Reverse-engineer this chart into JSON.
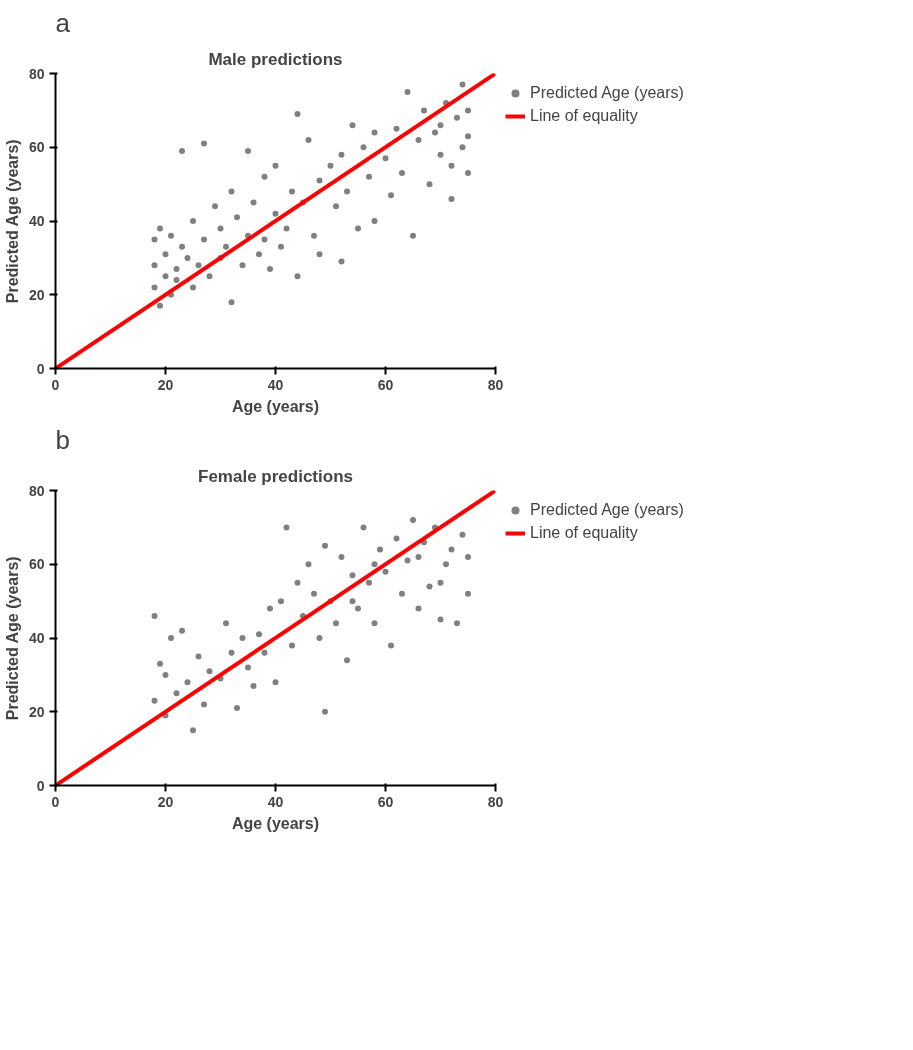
{
  "chart_data": [
    {
      "type": "scatter",
      "title": "Male predictions",
      "xlabel": "Age (years)",
      "ylabel": "Predicted Age (years)",
      "annotations": [
        "a"
      ],
      "xlim": [
        0,
        80
      ],
      "ylim": [
        0,
        80
      ],
      "xticks": [
        0,
        20,
        40,
        60,
        80
      ],
      "yticks": [
        0,
        20,
        40,
        60,
        80
      ],
      "grid": false,
      "legend": "right",
      "series": [
        {
          "name": "Predicted Age (years)",
          "marker": "circle",
          "color": "#808080",
          "x": [
            18,
            18,
            18,
            19,
            19,
            20,
            20,
            21,
            21,
            22,
            22,
            23,
            23,
            24,
            25,
            25,
            26,
            27,
            27,
            28,
            29,
            30,
            30,
            31,
            32,
            32,
            33,
            34,
            35,
            35,
            36,
            37,
            38,
            38,
            39,
            40,
            40,
            41,
            42,
            43,
            44,
            44,
            45,
            46,
            47,
            48,
            48,
            50,
            51,
            52,
            52,
            53,
            54,
            55,
            56,
            57,
            58,
            58,
            60,
            61,
            62,
            63,
            64,
            65,
            66,
            67,
            68,
            69,
            70,
            71,
            72,
            73,
            74,
            75,
            75,
            75,
            74,
            72,
            70
          ],
          "values": [
            22,
            28,
            35,
            38,
            17,
            25,
            31,
            20,
            36,
            27,
            24,
            59,
            33,
            30,
            22,
            40,
            28,
            61,
            35,
            25,
            44,
            30,
            38,
            33,
            18,
            48,
            41,
            28,
            36,
            59,
            45,
            31,
            52,
            35,
            27,
            42,
            55,
            33,
            38,
            48,
            69,
            25,
            45,
            62,
            36,
            51,
            31,
            55,
            44,
            58,
            29,
            48,
            66,
            38,
            60,
            52,
            64,
            40,
            57,
            47,
            65,
            53,
            75,
            36,
            62,
            70,
            50,
            64,
            58,
            72,
            46,
            68,
            77,
            53,
            63,
            70,
            60,
            55,
            66
          ]
        },
        {
          "name": "Line of equality",
          "type": "line",
          "color": "#ff0000",
          "x": [
            0,
            80
          ],
          "values": [
            0,
            80
          ]
        }
      ]
    },
    {
      "type": "scatter",
      "title": "Female predictions",
      "xlabel": "Age (years)",
      "ylabel": "Predicted Age (years)",
      "annotations": [
        "b"
      ],
      "xlim": [
        0,
        80
      ],
      "ylim": [
        0,
        80
      ],
      "xticks": [
        0,
        20,
        40,
        60,
        80
      ],
      "yticks": [
        0,
        20,
        40,
        60,
        80
      ],
      "grid": false,
      "legend": "right",
      "series": [
        {
          "name": "Predicted Age (years)",
          "marker": "circle",
          "color": "#808080",
          "x": [
            18,
            18,
            19,
            20,
            20,
            21,
            22,
            23,
            24,
            25,
            26,
            27,
            28,
            30,
            31,
            32,
            33,
            34,
            35,
            36,
            37,
            38,
            39,
            40,
            41,
            42,
            43,
            44,
            45,
            46,
            47,
            48,
            49,
            49,
            50,
            51,
            52,
            53,
            54,
            55,
            56,
            57,
            58,
            59,
            60,
            61,
            62,
            63,
            64,
            65,
            66,
            67,
            68,
            69,
            70,
            71,
            72,
            73,
            74,
            75,
            75,
            70,
            66,
            58,
            54
          ],
          "values": [
            46,
            23,
            33,
            19,
            30,
            40,
            25,
            42,
            28,
            15,
            35,
            22,
            31,
            29,
            44,
            36,
            21,
            40,
            32,
            27,
            41,
            36,
            48,
            28,
            50,
            70,
            38,
            55,
            46,
            60,
            52,
            40,
            20,
            65,
            50,
            44,
            62,
            34,
            57,
            48,
            70,
            55,
            44,
            64,
            58,
            38,
            67,
            52,
            61,
            72,
            48,
            66,
            54,
            70,
            45,
            60,
            64,
            44,
            68,
            52,
            62,
            55,
            62,
            60,
            50
          ]
        },
        {
          "name": "Line of equality",
          "type": "line",
          "color": "#ff0000",
          "x": [
            0,
            80
          ],
          "values": [
            0,
            80
          ]
        }
      ]
    }
  ]
}
